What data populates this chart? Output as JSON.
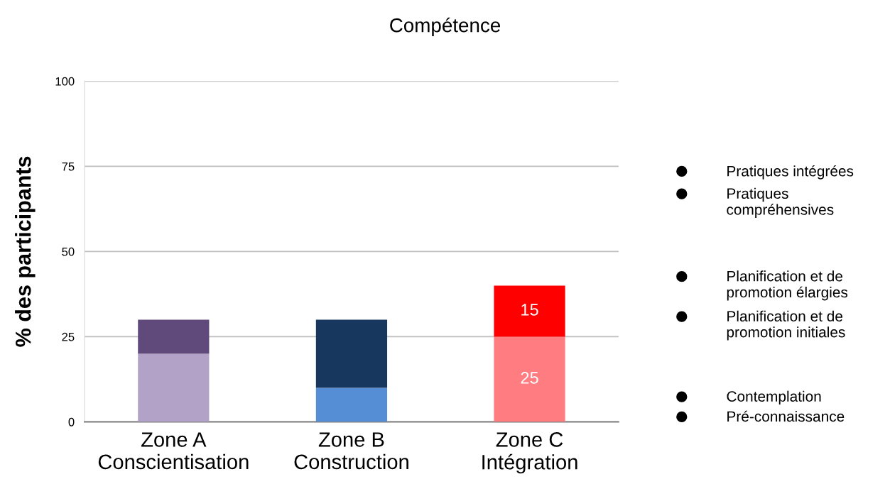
{
  "chart_data": {
    "type": "bar",
    "title": "Compétence",
    "ylabel": "% des participants",
    "categories": [
      "Zone A\nConscientisation",
      "Zone B\nConstruction",
      "Zone C\nIntégration"
    ],
    "stacked": true,
    "series": [
      {
        "colors": [
          "#b3a2c7",
          "#558ed5",
          "#ff7c80"
        ],
        "values": [
          20,
          10,
          25
        ],
        "value_labels": [
          null,
          null,
          "25"
        ]
      },
      {
        "colors": [
          "#604a7b",
          "#17375e",
          "#ff0000"
        ],
        "values": [
          10,
          20,
          15
        ],
        "value_labels": [
          null,
          null,
          "15"
        ]
      }
    ],
    "ylim": [
      0,
      100
    ],
    "yticks": [
      0,
      25,
      50,
      75,
      100
    ],
    "grid": "y",
    "annotations": [
      "Pratiques intégrées",
      "Pratiques\ncompréhensives",
      "Planification et de\npromotion élargies",
      "Planification et de\npromotion initiales",
      "Contemplation",
      "Pré-connaissance"
    ]
  }
}
